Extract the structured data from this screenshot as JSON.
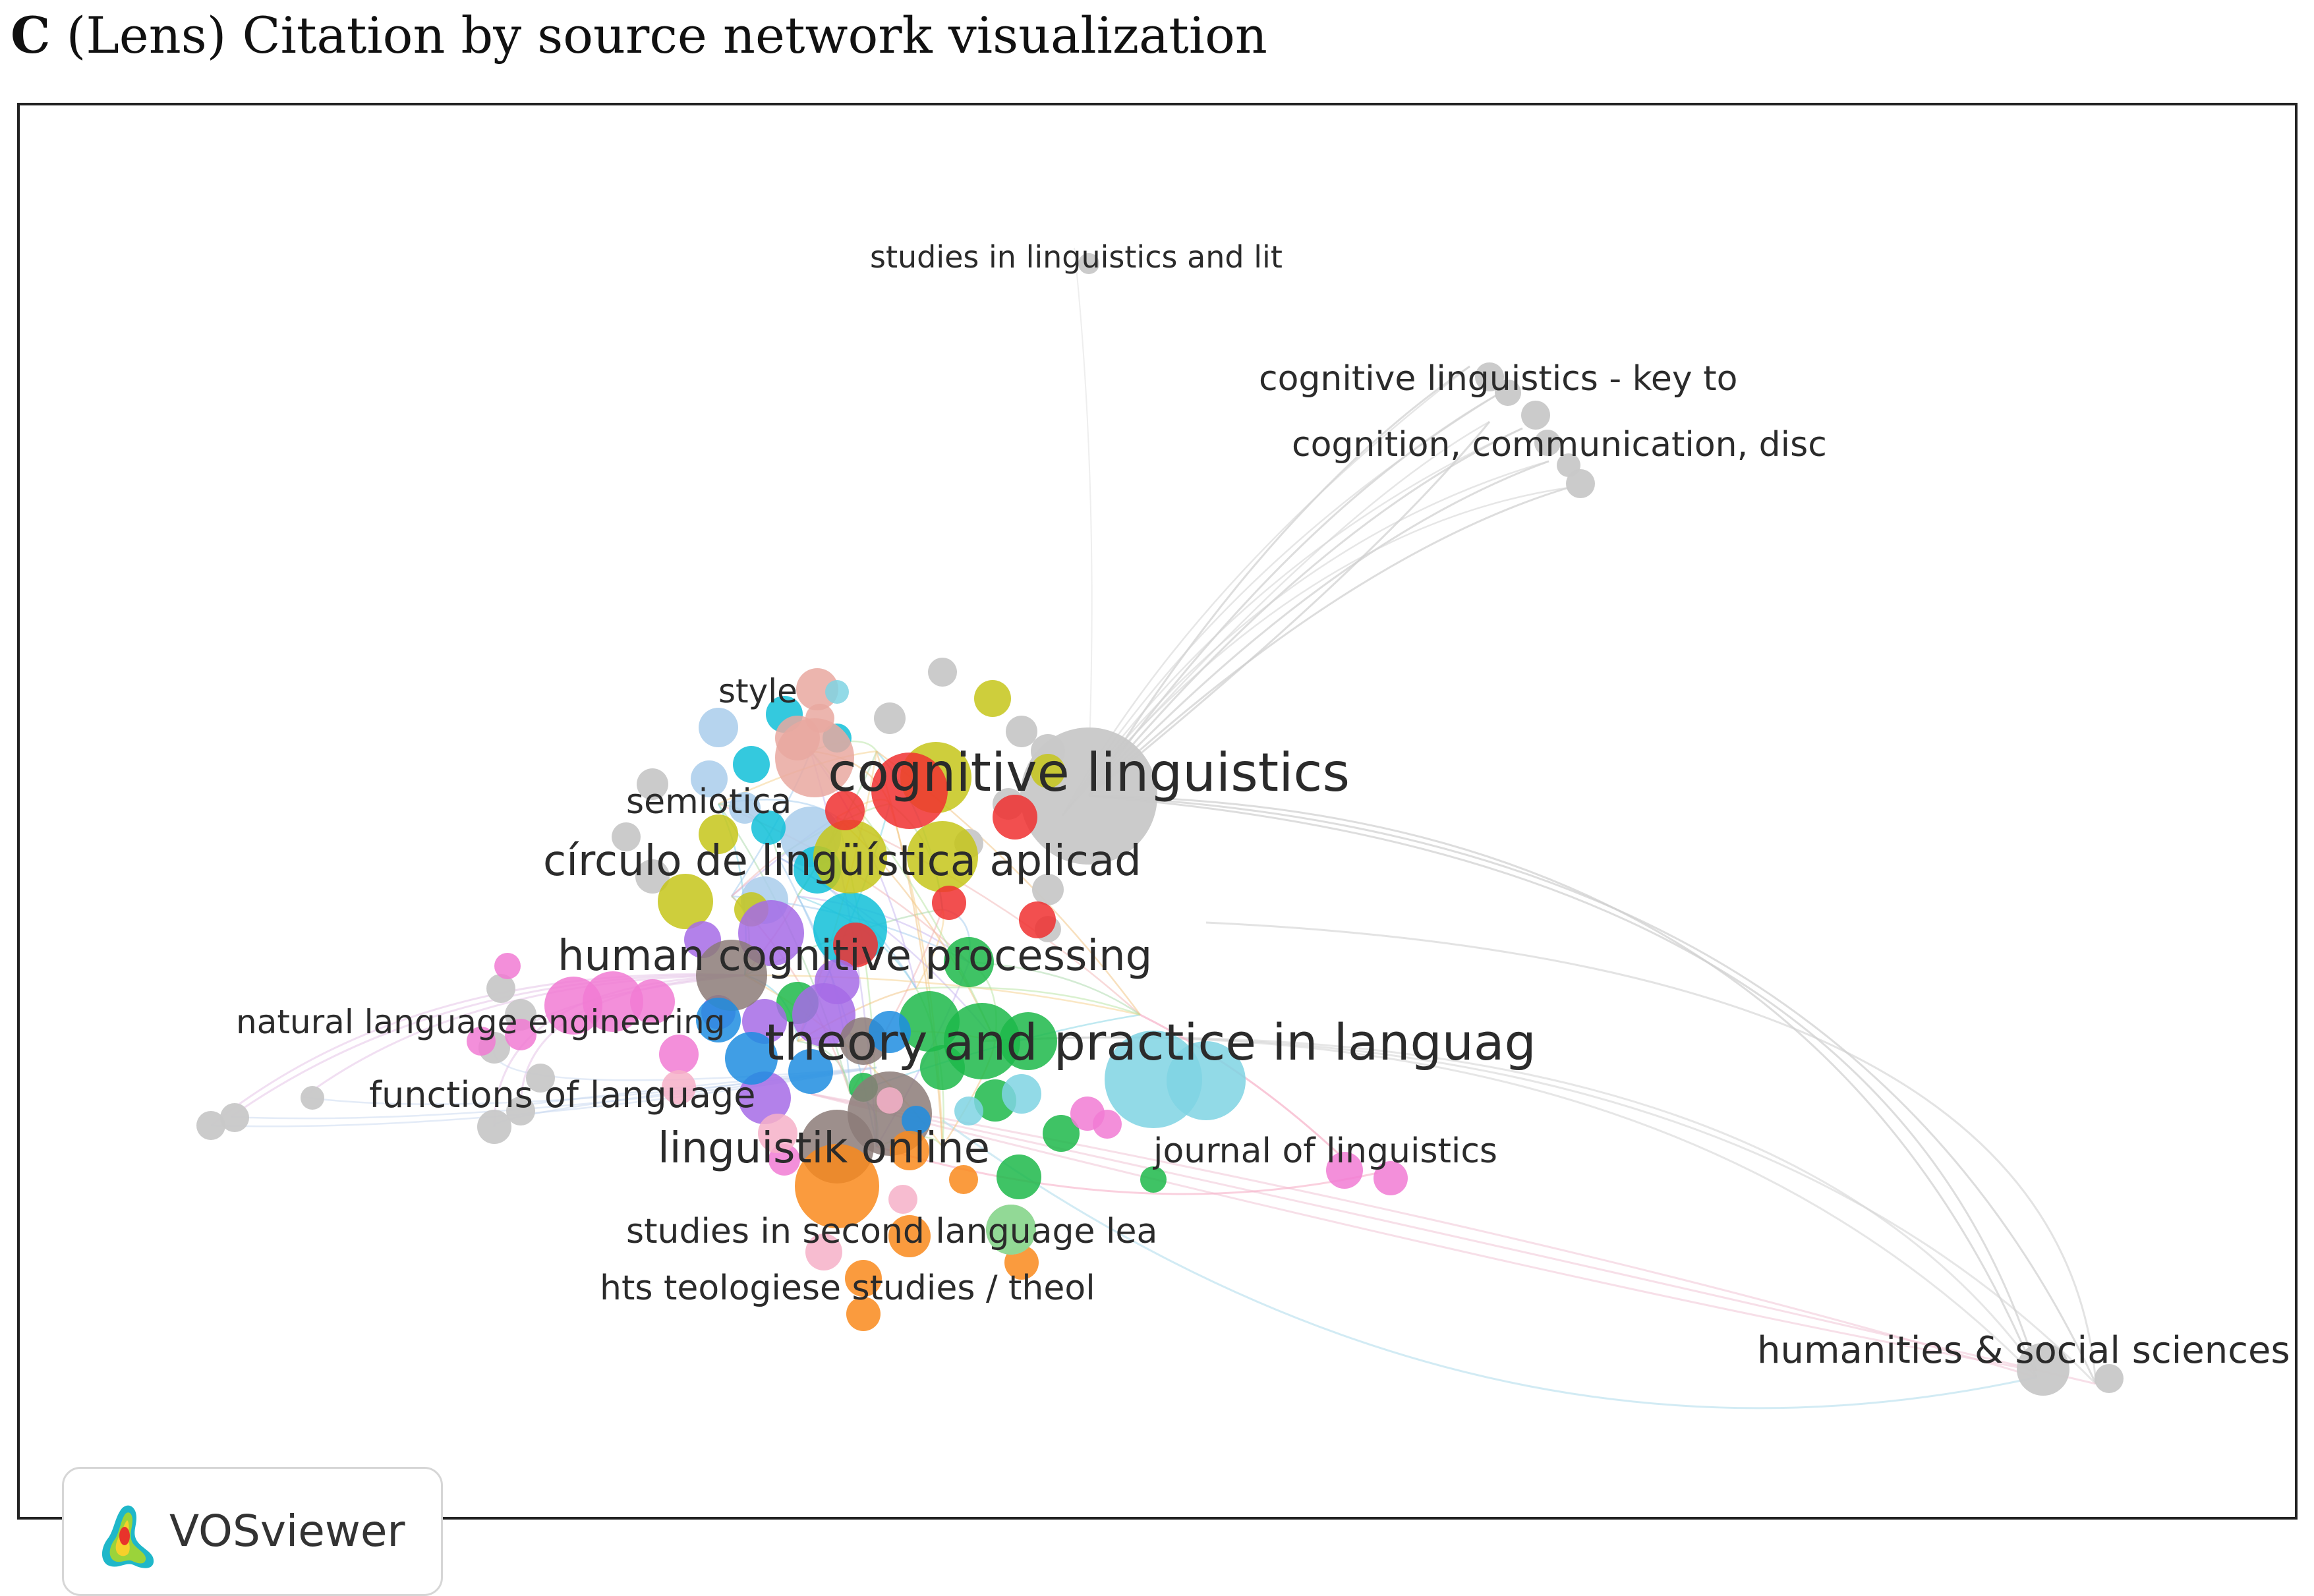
{
  "caption": {
    "letter": "C",
    "text": "(Lens) Citation by source network visualization"
  },
  "watermark": {
    "text": "VOSviewer",
    "icon": "vosviewer-logo-icon"
  },
  "legend_colors": {
    "gray": "#c8c8c8",
    "red": "#f03030",
    "green": "#1db84a",
    "cyan": "#7fd3e3",
    "yellow": "#c6c61a",
    "purple": "#a66be6",
    "pink": "#f17bd4",
    "orange": "#f98a1c",
    "blue": "#1f8de0",
    "light_blue": "#a9cdeb",
    "salmon": "#e9a8a0",
    "brown": "#8c7b78",
    "teal": "#10c0d8",
    "light_pink": "#f6b0c8"
  },
  "labels": {
    "studies_lit": "studies in linguistics and lit",
    "cl_key": "cognitive linguistics - key to",
    "cognition_comm": "cognition, communication, disc",
    "style": "style",
    "cognitive_linguistics": "cognitive linguistics",
    "semiotica": "semiotica",
    "circulo": "círculo de lingüística aplicad",
    "human_cognitive": "human cognitive processing",
    "natural_language": "natural language engineering",
    "theory_practice": "theory and practice in languag",
    "functions": "functions of language",
    "linguistik_online": "linguistik online",
    "journal_linguistics": "journal of linguistics",
    "second_language": "studies in second language lea",
    "hts": "hts teologiese studies / theol",
    "humanities": "humanities & social sciences"
  }
}
